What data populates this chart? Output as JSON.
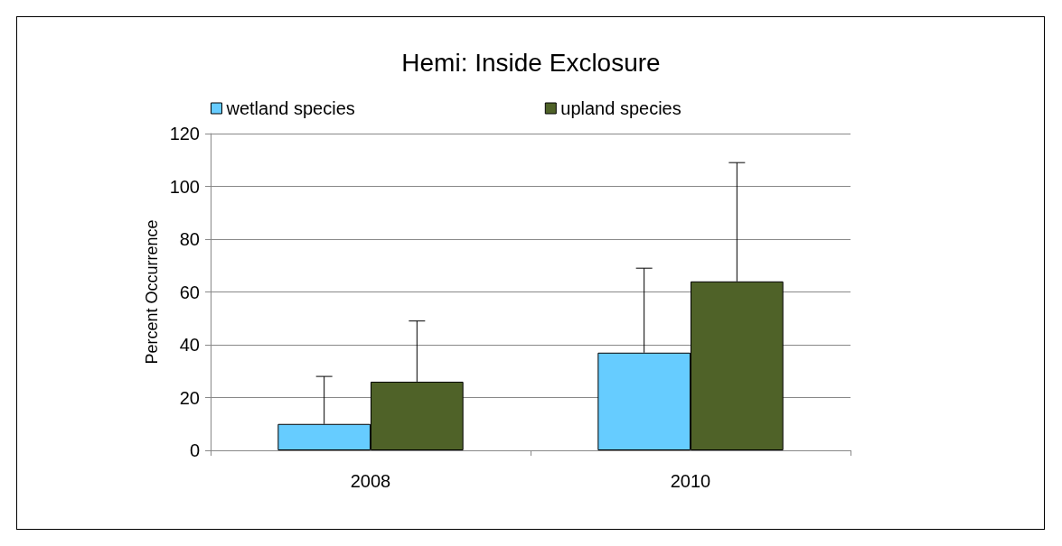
{
  "chart_data": {
    "type": "bar",
    "title": "Hemi: Inside Exclosure",
    "ylabel": "Percent Occurrence",
    "categories": [
      "2008",
      "2010"
    ],
    "series": [
      {
        "name": "wetland species",
        "color": "#66ccff",
        "values": [
          10,
          37
        ],
        "errors": [
          [
            10,
            28
          ],
          [
            37,
            69
          ]
        ]
      },
      {
        "name": "upland species",
        "color": "#4f6228",
        "values": [
          26,
          64
        ],
        "errors": [
          [
            26,
            49
          ],
          [
            64,
            109
          ]
        ]
      }
    ],
    "ylim": [
      0,
      120
    ],
    "yticks": [
      0,
      20,
      40,
      60,
      80,
      100,
      120
    ],
    "grid": "y",
    "legend": "top left"
  }
}
